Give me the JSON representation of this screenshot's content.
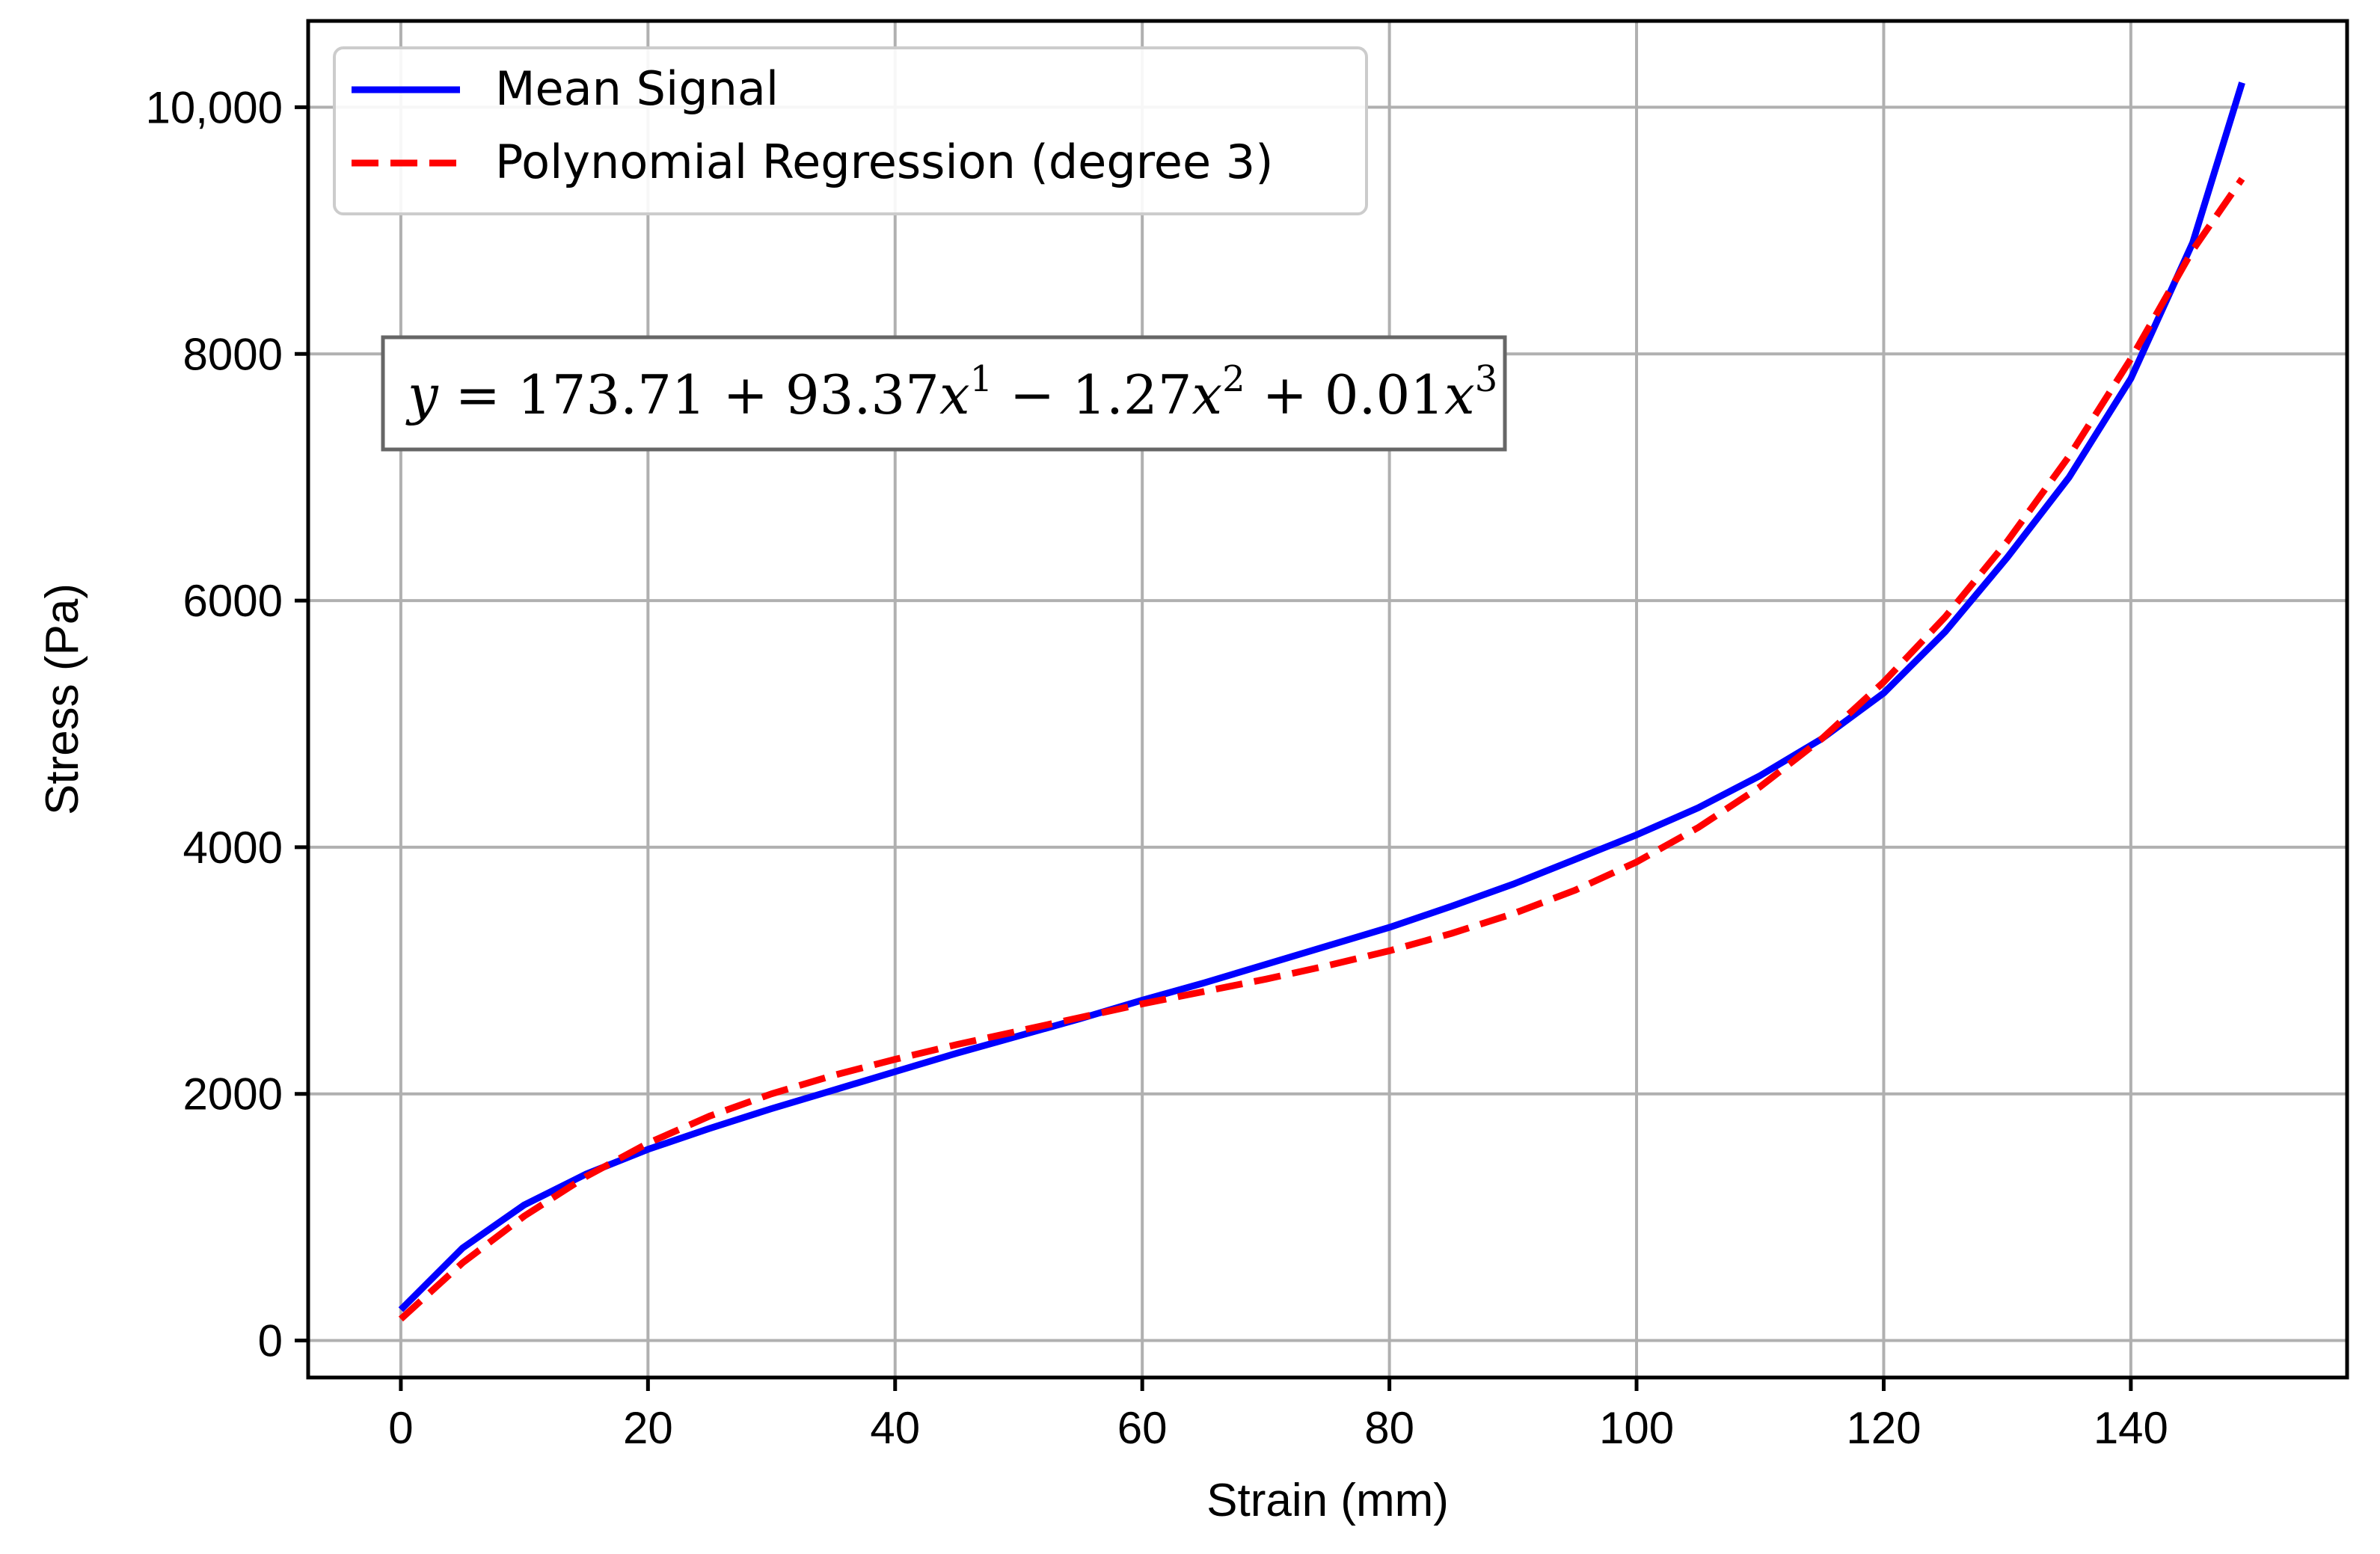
{
  "chart_data": {
    "type": "line",
    "xlabel": "Strain (mm)",
    "ylabel": "Stress (Pa)",
    "xlim": [
      -7.5,
      157.5
    ],
    "ylim": [
      -300,
      10700
    ],
    "x_ticks": [
      0,
      20,
      40,
      60,
      80,
      100,
      120,
      140
    ],
    "x_tick_labels": [
      "0",
      "20",
      "40",
      "60",
      "80",
      "100",
      "120",
      "140"
    ],
    "y_ticks": [
      0,
      2000,
      4000,
      6000,
      8000,
      10000
    ],
    "y_tick_labels": [
      "0",
      "2000",
      "4000",
      "6000",
      "8000",
      "10,000"
    ],
    "grid": true,
    "legend_position": "top-left",
    "annotation": {
      "text": "y = 173.71 + 93.37x¹ − 1.27x² + 0.01x³",
      "parts": {
        "y": "y",
        "equals": " = 173.71 + 93.37",
        "x1": "x",
        "e1": "1",
        "mid1": " − 1.27",
        "x2": "x",
        "e2": "2",
        "mid2": " + 0.01",
        "x3": "x",
        "e3": "3"
      }
    },
    "series": [
      {
        "name": "Mean Signal",
        "color": "#0000ff",
        "style": "solid",
        "x": [
          0,
          5,
          10,
          15,
          20,
          25,
          30,
          35,
          40,
          45,
          50,
          55,
          60,
          65,
          70,
          75,
          80,
          85,
          90,
          95,
          100,
          105,
          110,
          115,
          120,
          125,
          130,
          135,
          140,
          145,
          149
        ],
        "y": [
          250,
          750,
          1100,
          1350,
          1550,
          1720,
          1880,
          2030,
          2180,
          2330,
          2470,
          2610,
          2760,
          2900,
          3050,
          3200,
          3350,
          3520,
          3700,
          3900,
          4100,
          4320,
          4580,
          4880,
          5250,
          5750,
          6350,
          7000,
          7800,
          8900,
          10200
        ]
      },
      {
        "name": "Polynomial Regression (degree 3)",
        "color": "#ff0000",
        "style": "dashed",
        "x": [
          0,
          5,
          10,
          15,
          20,
          25,
          30,
          35,
          40,
          45,
          50,
          55,
          60,
          65,
          70,
          75,
          80,
          85,
          90,
          95,
          100,
          105,
          110,
          115,
          120,
          125,
          130,
          135,
          140,
          145,
          149
        ],
        "y": [
          174,
          630,
          1010,
          1330,
          1600,
          1820,
          2000,
          2150,
          2280,
          2400,
          2510,
          2620,
          2730,
          2830,
          2930,
          3040,
          3160,
          3300,
          3460,
          3650,
          3880,
          4160,
          4490,
          4880,
          5340,
          5870,
          6480,
          7170,
          7960,
          8840,
          9420
        ]
      }
    ]
  }
}
